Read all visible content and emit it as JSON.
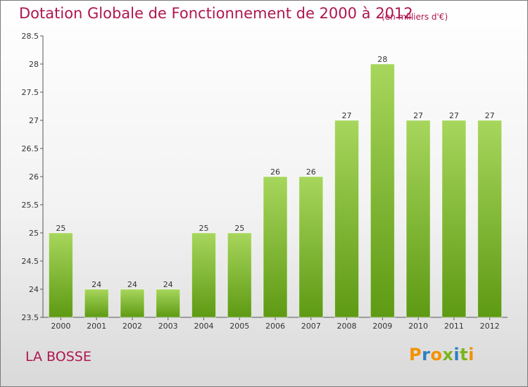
{
  "title": "Dotation Globale de Fonctionnement de 2000 à 2012",
  "subtitle": "(en milliers d'€)",
  "commune": "LA BOSSE",
  "logo": {
    "letters": [
      "P",
      "r",
      "o",
      "x",
      "i",
      "t",
      "i"
    ],
    "colors": [
      "#f39200",
      "#2e7fc1",
      "#f39200",
      "#7ab51d",
      "#2e7fc1",
      "#7ab51d",
      "#f39200"
    ]
  },
  "colors": {
    "bar_light": "#a7d65c",
    "bar_dark": "#5e9a13",
    "title": "#b0154f",
    "axis": "#555555",
    "grid": "#cccccc"
  },
  "chart_data": {
    "type": "bar",
    "categories": [
      "2000",
      "2001",
      "2002",
      "2003",
      "2004",
      "2005",
      "2006",
      "2007",
      "2008",
      "2009",
      "2010",
      "2011",
      "2012"
    ],
    "values": [
      25,
      24,
      24,
      24,
      25,
      25,
      26,
      26,
      27,
      28,
      27,
      27,
      27
    ],
    "title": "Dotation Globale de Fonctionnement de 2000 à 2012",
    "ylim": [
      23.5,
      28.5
    ],
    "yticks": [
      "23.5",
      "24",
      "24.5",
      "25",
      "25.5",
      "26",
      "26.5",
      "27",
      "27.5",
      "28",
      "28.5"
    ],
    "grid": false,
    "data_labels": true
  }
}
